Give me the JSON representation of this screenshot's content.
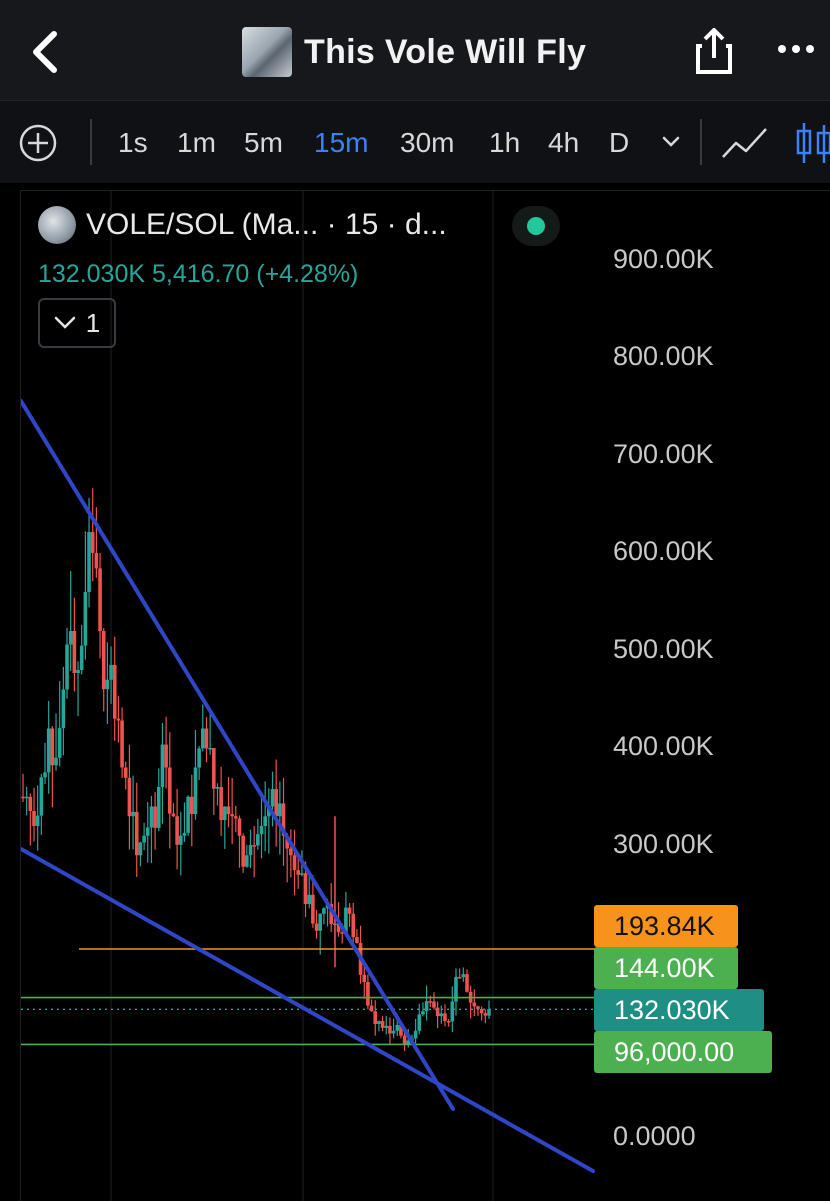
{
  "header": {
    "title": "This Vole Will Fly"
  },
  "toolbar": {
    "timeframes": [
      "1s",
      "1m",
      "5m",
      "15m",
      "30m",
      "1h",
      "4h",
      "D"
    ],
    "active_timeframe": "15m"
  },
  "legend": {
    "symbol": "VOLE/SOL (Ma... · 15 · d...",
    "ohlc": "132.030K  5,416.70 (+4.28%)",
    "indicator_count": "1"
  },
  "colors": {
    "up": "#26a69a",
    "down": "#ef5350",
    "trendline": "#2f46c7",
    "accent": "#3b82f6",
    "orange_level": "#f7931a",
    "green_level": "#4caf50"
  },
  "chart_data": {
    "type": "candlestick",
    "interval": "15m",
    "symbol": "VOLE/SOL",
    "y_axis_labels": [
      "900.00K",
      "800.00K",
      "700.00K",
      "600.00K",
      "500.00K",
      "400.00K",
      "300.00K",
      "0.0000"
    ],
    "ylim": [
      0,
      900000
    ],
    "last_price": 132030,
    "price_lines": [
      {
        "value": 193840,
        "label": "193.84K",
        "color": "#f7931a"
      },
      {
        "value": 144000,
        "label": "144.00K",
        "color": "#4caf50"
      },
      {
        "value": 132030,
        "label": "132.030K",
        "color": "#26a69a"
      },
      {
        "value": 96000,
        "label": "96,000.00",
        "color": "#4caf50"
      }
    ],
    "close_series_approx": [
      350000,
      320000,
      370000,
      420000,
      390000,
      460000,
      520000,
      480000,
      560000,
      600000,
      520000,
      470000,
      430000,
      380000,
      330000,
      290000,
      310000,
      340000,
      360000,
      380000,
      330000,
      310000,
      350000,
      380000,
      420000,
      400000,
      360000,
      340000,
      330000,
      310000,
      290000,
      300000,
      320000,
      340000,
      330000,
      310000,
      290000,
      270000,
      240000,
      220000,
      230000,
      240000,
      220000,
      210000,
      230000,
      200000,
      160000,
      130000,
      120000,
      115000,
      110000,
      105000,
      100000,
      110000,
      130000,
      140000,
      125000,
      120000,
      140000,
      165000,
      150000,
      135000,
      128000,
      132030
    ],
    "trendlines": [
      {
        "name": "upper",
        "from": [
          0,
          760000
        ],
        "to": [
          54,
          40000
        ]
      },
      {
        "name": "lower",
        "from": [
          0,
          300000
        ],
        "to": [
          70,
          -40000
        ]
      }
    ]
  }
}
